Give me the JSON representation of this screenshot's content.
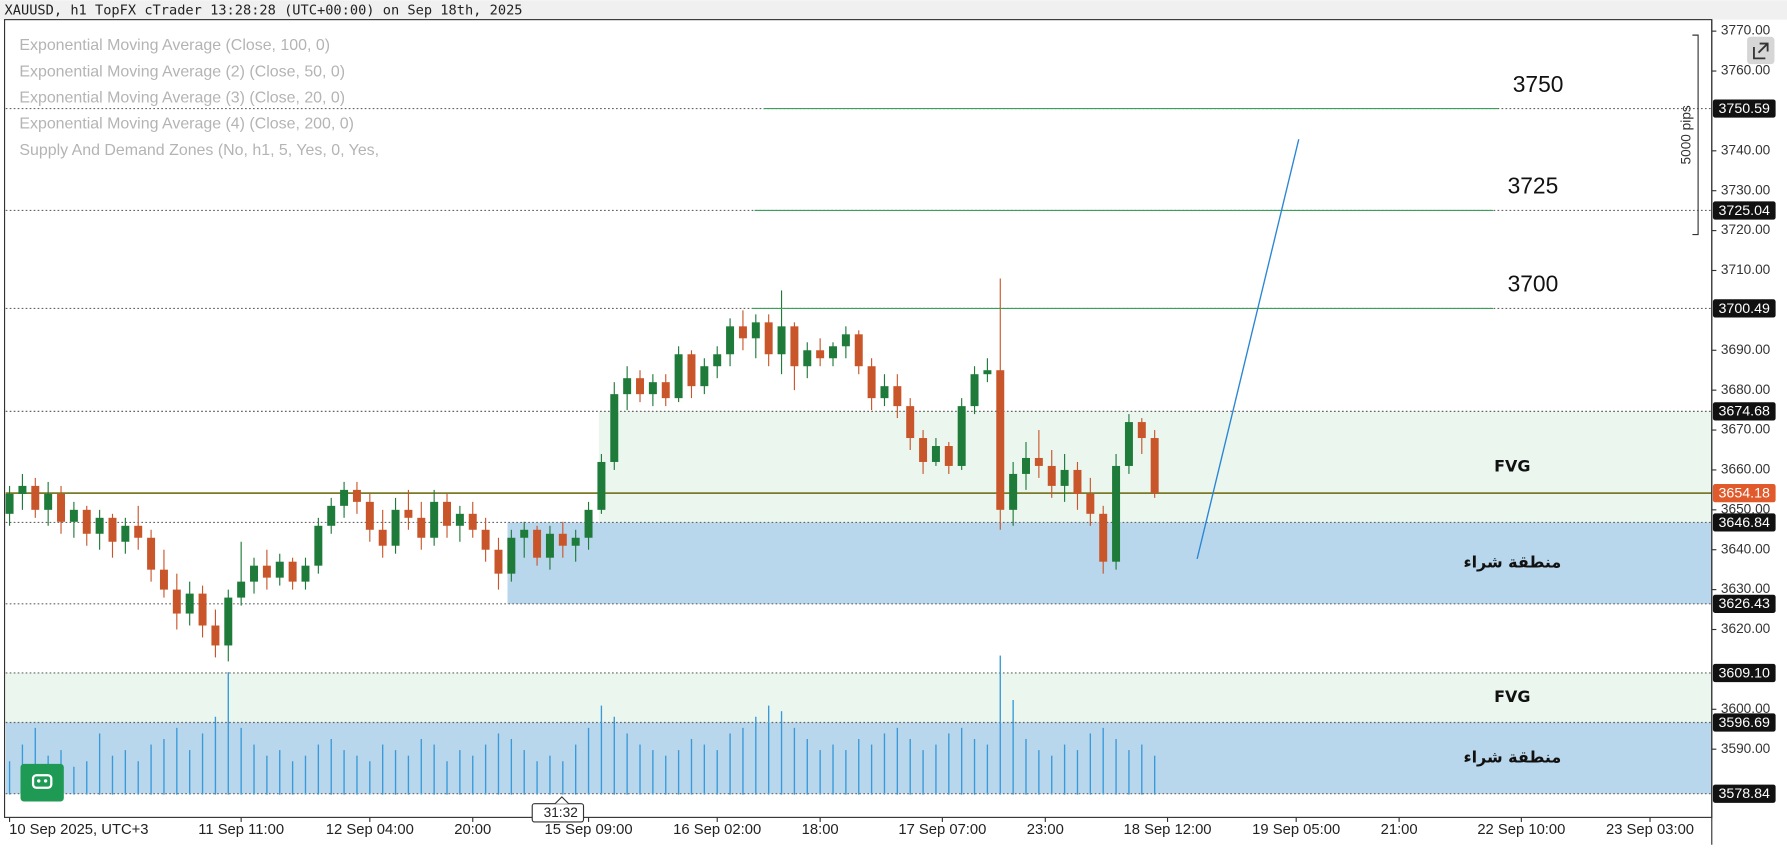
{
  "header": {
    "title": "XAUUSD, h1 TopFX cTrader 13:28:28 (UTC+00:00) on Sep 18th, 2025"
  },
  "indicators": [
    "Exponential Moving Average (Close, 100, 0)",
    "Exponential Moving Average (2) (Close, 50, 0)",
    "Exponential Moving Average (3) (Close, 20, 0)",
    "Exponential Moving Average (4) (Close, 200, 0)",
    "Supply And Demand Zones (No, h1, 5, Yes, 0, Yes,"
  ],
  "timer": "31:32",
  "chart_data": {
    "type": "candlestick",
    "up_color": "#1e7b3a",
    "down_color": "#c9562a",
    "volume_color": "#3a9ad9",
    "open": [
      3649,
      3654,
      3656,
      3650,
      3654,
      3647,
      3650,
      3644,
      3648,
      3642,
      3646,
      3643,
      3635,
      3630,
      3624,
      3629,
      3621,
      3616,
      3628,
      3632,
      3636,
      3633,
      3637,
      3632,
      3636,
      3646,
      3651,
      3655,
      3652,
      3645,
      3641,
      3650,
      3648,
      3643,
      3652,
      3646,
      3649,
      3645,
      3640,
      3634,
      3643,
      3645,
      3638,
      3644,
      3641,
      3643,
      3650,
      3662,
      3679,
      3683,
      3679,
      3682,
      3678,
      3689,
      3681,
      3686,
      3689,
      3696,
      3693,
      3697,
      3689,
      3696,
      3686,
      3690,
      3688,
      3691,
      3694,
      3686,
      3678,
      3681,
      3676,
      3668,
      3662,
      3666,
      3661,
      3676,
      3684,
      3685,
      3650,
      3659,
      3663,
      3661,
      3656,
      3660,
      3654,
      3649,
      3637,
      3661,
      3672,
      3668
    ],
    "high": [
      3656,
      3659,
      3658,
      3657,
      3656,
      3652,
      3651,
      3650,
      3649,
      3648,
      3651,
      3645,
      3640,
      3634,
      3632,
      3631,
      3625,
      3630,
      3642,
      3638,
      3640,
      3639,
      3638,
      3638,
      3648,
      3653,
      3657,
      3657,
      3654,
      3650,
      3653,
      3655,
      3652,
      3655,
      3654,
      3651,
      3652,
      3648,
      3643,
      3645,
      3647,
      3646,
      3646,
      3647,
      3645,
      3652,
      3664,
      3682,
      3686,
      3685,
      3684,
      3684,
      3691,
      3690,
      3688,
      3691,
      3698,
      3700,
      3699,
      3699,
      3705,
      3697,
      3692,
      3693,
      3692,
      3696,
      3695,
      3688,
      3684,
      3684,
      3678,
      3670,
      3668,
      3667,
      3678,
      3686,
      3688,
      3708,
      3662,
      3667,
      3670,
      3665,
      3664,
      3662,
      3658,
      3651,
      3664,
      3674,
      3673,
      3670
    ],
    "low": [
      3646,
      3650,
      3648,
      3646,
      3644,
      3643,
      3641,
      3640,
      3638,
      3639,
      3640,
      3632,
      3628,
      3620,
      3621,
      3618,
      3613,
      3612,
      3626,
      3629,
      3630,
      3631,
      3630,
      3630,
      3634,
      3644,
      3648,
      3649,
      3642,
      3638,
      3639,
      3645,
      3640,
      3641,
      3643,
      3642,
      3643,
      3637,
      3630,
      3632,
      3638,
      3636,
      3635,
      3638,
      3637,
      3640,
      3649,
      3660,
      3675,
      3677,
      3676,
      3676,
      3677,
      3678,
      3679,
      3683,
      3686,
      3690,
      3688,
      3686,
      3684,
      3680,
      3683,
      3686,
      3686,
      3688,
      3684,
      3675,
      3676,
      3673,
      3665,
      3659,
      3661,
      3659,
      3660,
      3674,
      3682,
      3645,
      3646,
      3655,
      3658,
      3653,
      3652,
      3650,
      3646,
      3634,
      3635,
      3659,
      3664,
      3653
    ],
    "close": [
      3654,
      3656,
      3650,
      3654,
      3647,
      3650,
      3644,
      3648,
      3642,
      3646,
      3643,
      3635,
      3630,
      3624,
      3629,
      3621,
      3616,
      3628,
      3632,
      3636,
      3633,
      3637,
      3632,
      3636,
      3646,
      3651,
      3655,
      3652,
      3645,
      3641,
      3650,
      3648,
      3643,
      3652,
      3646,
      3649,
      3645,
      3640,
      3634,
      3643,
      3645,
      3638,
      3644,
      3641,
      3643,
      3650,
      3662,
      3679,
      3683,
      3679,
      3682,
      3678,
      3689,
      3681,
      3686,
      3689,
      3696,
      3693,
      3697,
      3689,
      3696,
      3686,
      3690,
      3688,
      3691,
      3694,
      3686,
      3678,
      3681,
      3676,
      3668,
      3662,
      3666,
      3661,
      3676,
      3684,
      3685,
      3650,
      3659,
      3663,
      3661,
      3656,
      3660,
      3654,
      3649,
      3637,
      3661,
      3672,
      3668,
      3654.18
    ],
    "volume": [
      30,
      45,
      60,
      35,
      40,
      25,
      30,
      55,
      35,
      40,
      30,
      45,
      50,
      60,
      40,
      55,
      70,
      110,
      60,
      45,
      35,
      40,
      30,
      35,
      45,
      50,
      40,
      35,
      30,
      45,
      40,
      35,
      50,
      45,
      30,
      40,
      35,
      45,
      55,
      50,
      40,
      30,
      35,
      30,
      45,
      60,
      80,
      70,
      55,
      45,
      40,
      35,
      40,
      50,
      45,
      40,
      55,
      60,
      70,
      80,
      75,
      60,
      50,
      40,
      45,
      40,
      50,
      45,
      55,
      60,
      50,
      40,
      45,
      55,
      60,
      50,
      45,
      125,
      85,
      50,
      40,
      35,
      45,
      40,
      55,
      60,
      50,
      40,
      45,
      35
    ],
    "xlim": [
      -0.3,
      132.3
    ],
    "xticks": [
      {
        "value": 0,
        "label": "10 Sep 2025, UTC+3"
      },
      {
        "value": 18,
        "label": "11 Sep 11:00"
      },
      {
        "value": 28,
        "label": "12 Sep 04:00"
      },
      {
        "value": 36,
        "label": "20:00"
      },
      {
        "value": 45,
        "label": "15 Sep 09:00"
      },
      {
        "value": 55,
        "label": "16 Sep 02:00"
      },
      {
        "value": 63,
        "label": "18:00"
      },
      {
        "value": 72.5,
        "label": "17 Sep 07:00"
      },
      {
        "value": 80.5,
        "label": "23:00"
      },
      {
        "value": 90,
        "label": "18 Sep 12:00"
      },
      {
        "value": 100,
        "label": "19 Sep 05:00"
      },
      {
        "value": 108,
        "label": "21:00"
      },
      {
        "value": 117.5,
        "label": "22 Sep 10:00"
      },
      {
        "value": 127.5,
        "label": "23 Sep 03:00"
      }
    ],
    "ylim": [
      3572.9,
      3772.6
    ],
    "yticks": [
      {
        "value": 3770,
        "label": "3770.00"
      },
      {
        "value": 3760,
        "label": "3760.00"
      },
      {
        "value": 3740,
        "label": "3740.00"
      },
      {
        "value": 3730,
        "label": "3730.00"
      },
      {
        "value": 3720,
        "label": "3720.00"
      },
      {
        "value": 3710,
        "label": "3710.00"
      },
      {
        "value": 3690,
        "label": "3690.00"
      },
      {
        "value": 3680,
        "label": "3680.00"
      },
      {
        "value": 3670,
        "label": "3670.00"
      },
      {
        "value": 3660,
        "label": "3660.00"
      },
      {
        "value": 3650,
        "label": "3650.00"
      },
      {
        "value": 3640,
        "label": "3640.00"
      },
      {
        "value": 3630,
        "label": "3630.00"
      },
      {
        "value": 3620,
        "label": "3620.00"
      },
      {
        "value": 3600,
        "label": "3600.00"
      },
      {
        "value": 3590,
        "label": "3590.00"
      }
    ],
    "levels": [
      {
        "value": 3750.59,
        "label": "3750.59"
      },
      {
        "value": 3725.04,
        "label": "3725.04"
      },
      {
        "value": 3700.49,
        "label": "3700.49"
      },
      {
        "value": 3674.68,
        "label": "3674.68"
      },
      {
        "value": 3646.84,
        "label": "3646.84"
      },
      {
        "value": 3626.43,
        "label": "3626.43"
      },
      {
        "value": 3609.1,
        "label": "3609.10"
      },
      {
        "value": 3596.69,
        "label": "3596.69"
      },
      {
        "value": 3578.84,
        "label": "3578.84"
      }
    ],
    "current": {
      "value": 3654.18,
      "label": "3654.18",
      "color": "#e05a2b"
    },
    "zones": [
      {
        "label": "FVG",
        "low": 3646.84,
        "high": 3674.68,
        "start": 45.8,
        "color": "#eaf6ee"
      },
      {
        "label": "منطقة شراء",
        "low": 3626.43,
        "high": 3646.84,
        "start": 38.7,
        "color": "#b9d7ec"
      },
      {
        "label": "FVG",
        "low": 3596.69,
        "high": 3609.1,
        "color": "#eaf6ee"
      },
      {
        "label": "منطقة شراء",
        "low": 3578.84,
        "high": 3596.69,
        "color": "#b9d7ec"
      }
    ],
    "targets": [
      {
        "label": "3750",
        "value": 3750.59,
        "start": 58.6,
        "end": 115.7
      },
      {
        "label": "3725",
        "value": 3725.04,
        "start": 57.9,
        "end": 115.3
      },
      {
        "label": "3700",
        "value": 3700.49,
        "start": 57.7,
        "end": 115.3
      }
    ],
    "target_color": "#3aa05a",
    "trendline": {
      "x": [
        92.3,
        100.2
      ],
      "y": [
        3637.7,
        3742.9
      ],
      "color": "#2a86d4"
    },
    "ruler": {
      "label": "5000 pips",
      "from": 3769,
      "to": 3719
    }
  }
}
